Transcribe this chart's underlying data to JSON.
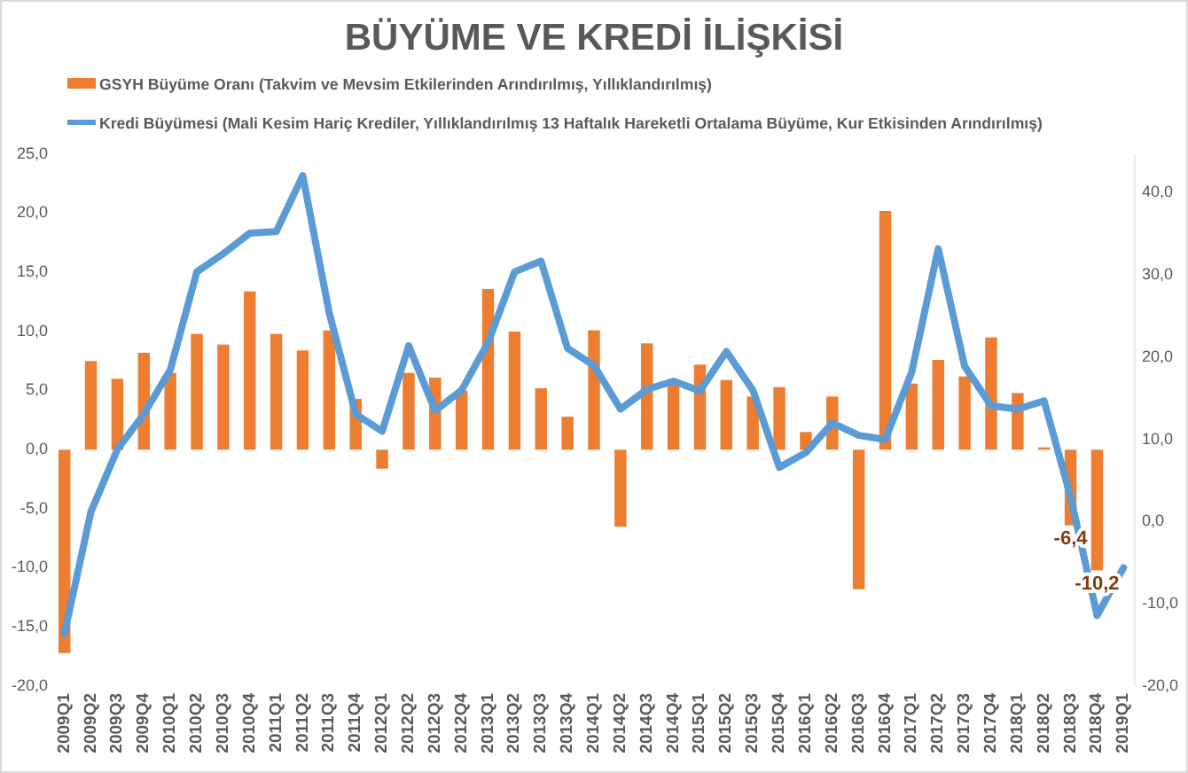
{
  "chart_data": {
    "type": "bar",
    "title": "BÜYÜME VE KREDİ İLİŞKİSİ",
    "categories": [
      "2009Q1",
      "2009Q2",
      "2009Q3",
      "2009Q4",
      "2010Q1",
      "2010Q2",
      "2010Q3",
      "2010Q4",
      "2011Q1",
      "2011Q2",
      "2011Q3",
      "2011Q4",
      "2012Q1",
      "2012Q2",
      "2012Q3",
      "2012Q4",
      "2013Q1",
      "2013Q2",
      "2013Q3",
      "2013Q4",
      "2014Q1",
      "2014Q2",
      "2014Q3",
      "2014Q4",
      "2015Q1",
      "2015Q2",
      "2015Q3",
      "2015Q4",
      "2016Q1",
      "2016Q2",
      "2016Q3",
      "2016Q4",
      "2017Q1",
      "2017Q2",
      "2017Q3",
      "2017Q4",
      "2018Q1",
      "2018Q2",
      "2018Q3",
      "2018Q4",
      "2019Q1"
    ],
    "series": [
      {
        "name": "GSYH Büyüme Oranı (Takvim ve Mevsim Etkilerinden Arındırılmış, Yıllıklandırılmış)",
        "color": "#ed7d31",
        "values": [
          -17.2,
          7.5,
          6.0,
          8.2,
          6.5,
          9.8,
          8.9,
          13.4,
          9.8,
          8.4,
          10.1,
          4.3,
          -1.6,
          6.5,
          6.1,
          5.0,
          13.6,
          10.0,
          5.2,
          2.8,
          10.1,
          -6.5,
          9.0,
          5.5,
          7.2,
          5.9,
          4.5,
          5.3,
          1.5,
          4.5,
          -11.8,
          20.2,
          5.6,
          7.6,
          6.2,
          9.5,
          4.8,
          0.2,
          -6.4,
          -10.2,
          null
        ],
        "value_labels": [
          null,
          null,
          null,
          null,
          null,
          null,
          null,
          null,
          null,
          null,
          null,
          null,
          null,
          null,
          null,
          null,
          null,
          null,
          null,
          null,
          null,
          null,
          null,
          null,
          null,
          null,
          null,
          null,
          null,
          null,
          null,
          null,
          null,
          null,
          null,
          null,
          null,
          null,
          "-6,4",
          "-10,2",
          null
        ]
      },
      {
        "name": "Kredi Büyümesi (Mali Kesim Hariç Krediler, Yıllıklandırılmış 13 Haftalık Hareketli Ortalama Büyüme, Kur Etkisinden Arındırılmış)",
        "type": "line",
        "axis": "y2",
        "color": "#5b9bd5",
        "values": [
          -13.6,
          1.2,
          8.8,
          13.1,
          18.5,
          30.4,
          32.6,
          35.1,
          35.3,
          42.1,
          25.4,
          13.1,
          11.0,
          21.4,
          13.5,
          16.0,
          21.8,
          30.4,
          31.7,
          21.1,
          19.0,
          13.7,
          16.1,
          17.1,
          15.9,
          20.7,
          16.0,
          6.6,
          8.4,
          12.0,
          10.5,
          10.0,
          18.2,
          33.2,
          18.9,
          14.1,
          13.7,
          14.7,
          3.0,
          -11.4,
          -5.6
        ]
      }
    ],
    "ylim": [
      -20,
      25
    ],
    "yticks": [
      {
        "value": -20,
        "label": "-20,0"
      },
      {
        "value": -15,
        "label": "-15,0"
      },
      {
        "value": -10,
        "label": "-10,0"
      },
      {
        "value": -5,
        "label": "-5,0"
      },
      {
        "value": 0,
        "label": "0,0"
      },
      {
        "value": 5,
        "label": "5,0"
      },
      {
        "value": 10,
        "label": "10,0"
      },
      {
        "value": 15,
        "label": "15,0"
      },
      {
        "value": 20,
        "label": "20,0"
      },
      {
        "value": 25,
        "label": "25,0"
      }
    ],
    "y2lim": [
      -20,
      44.7
    ],
    "y2ticks": [
      {
        "value": -20,
        "label": "-20,0"
      },
      {
        "value": -10,
        "label": "-10,0"
      },
      {
        "value": 0,
        "label": "0,0"
      },
      {
        "value": 10,
        "label": "10,0"
      },
      {
        "value": 20,
        "label": "20,0"
      },
      {
        "value": 30,
        "label": "30,0"
      },
      {
        "value": 40,
        "label": "40,0"
      }
    ],
    "legend": "top",
    "grid": false
  }
}
